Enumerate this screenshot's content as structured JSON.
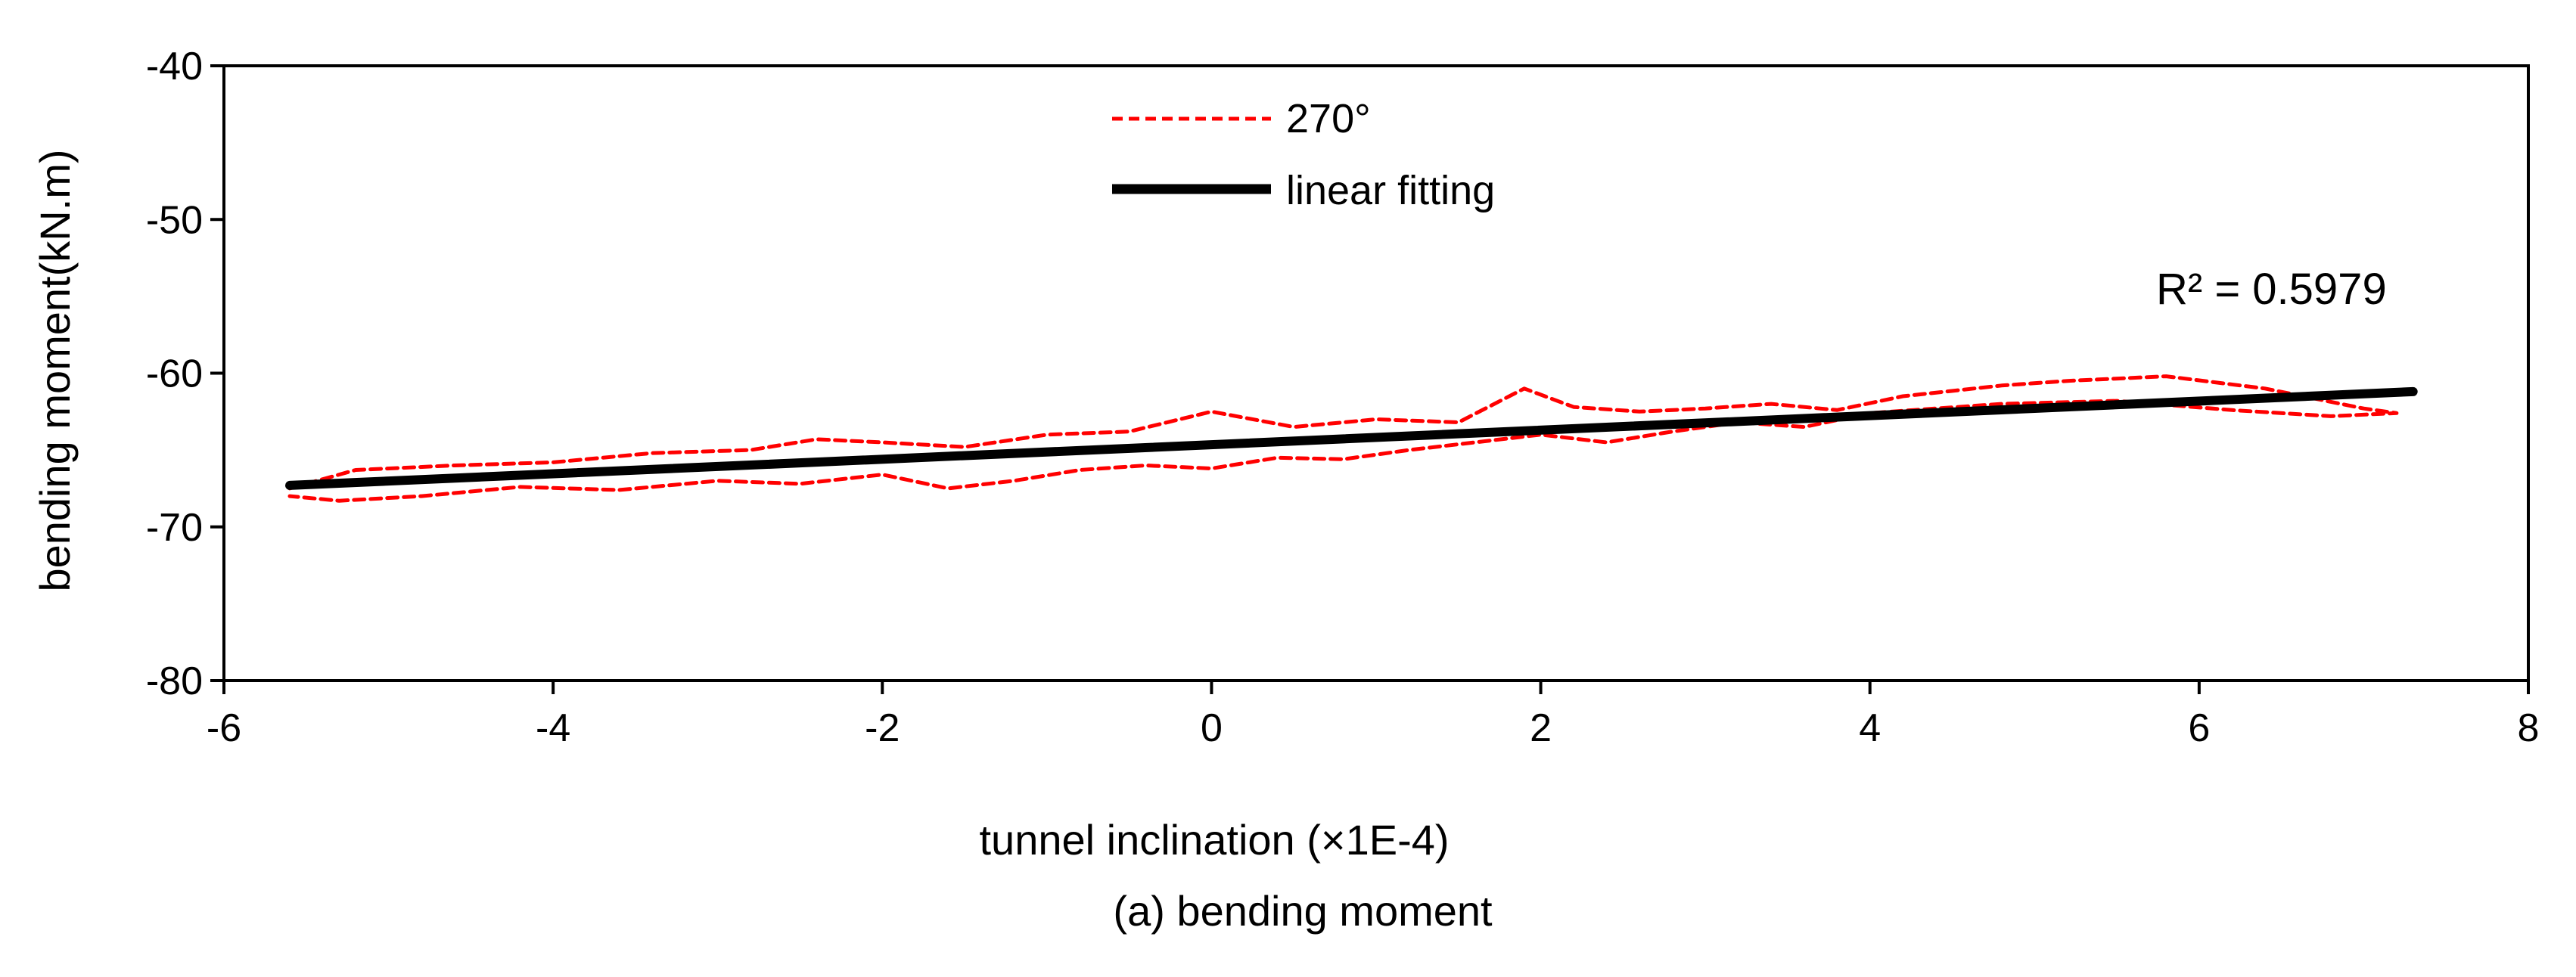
{
  "chart_data": {
    "type": "line",
    "title": "",
    "caption": "(a)  bending moment",
    "xlabel": "tunnel inclination  (×1E-4)",
    "ylabel": "bending moment(kN.m)",
    "xlim": [
      -6,
      8
    ],
    "ylim": [
      -80,
      -40
    ],
    "xticks": [
      -6,
      -4,
      -2,
      0,
      2,
      4,
      6,
      8
    ],
    "yticks": [
      -40,
      -50,
      -60,
      -70,
      -80
    ],
    "grid": false,
    "legend_position": "top-center",
    "annotation": "R² = 0.5979",
    "colors": {
      "measured": "#ff0000",
      "fit": "#000000"
    },
    "series": [
      {
        "name": "270°",
        "style": "dashed",
        "color": "#ff0000",
        "x": [
          -5.6,
          -5.2,
          -4.6,
          -4.0,
          -3.4,
          -2.8,
          -2.4,
          -2.0,
          -1.5,
          -1.0,
          -0.5,
          0.0,
          0.5,
          1.0,
          1.5,
          1.9,
          2.2,
          2.6,
          3.0,
          3.4,
          3.8,
          4.2,
          4.8,
          5.2,
          5.8,
          6.4,
          7.0,
          7.2,
          6.8,
          6.2,
          5.5,
          4.8,
          4.0,
          3.6,
          3.2,
          2.8,
          2.4,
          2.0,
          1.6,
          1.2,
          0.8,
          0.4,
          0.0,
          -0.4,
          -0.8,
          -1.2,
          -1.6,
          -2.0,
          -2.5,
          -3.0,
          -3.6,
          -4.2,
          -4.8,
          -5.3,
          -5.6
        ],
        "values": [
          -67.5,
          -66.3,
          -66.0,
          -65.8,
          -65.2,
          -65.0,
          -64.3,
          -64.5,
          -64.8,
          -64.0,
          -63.8,
          -62.5,
          -63.5,
          -63.0,
          -63.2,
          -61.0,
          -62.2,
          -62.5,
          -62.3,
          -62.0,
          -62.4,
          -61.5,
          -60.8,
          -60.5,
          -60.2,
          -61.0,
          -62.3,
          -62.6,
          -62.8,
          -62.4,
          -61.8,
          -62.0,
          -62.6,
          -63.5,
          -63.2,
          -63.8,
          -64.5,
          -64.0,
          -64.5,
          -65.0,
          -65.6,
          -65.5,
          -66.2,
          -66.0,
          -66.3,
          -67.0,
          -67.5,
          -66.6,
          -67.2,
          -67.0,
          -67.6,
          -67.4,
          -68.0,
          -68.3,
          -68.0
        ]
      },
      {
        "name": "linear fitting",
        "style": "solid",
        "color": "#000000",
        "x": [
          -5.6,
          7.3
        ],
        "values": [
          -67.3,
          -61.2
        ]
      }
    ]
  }
}
